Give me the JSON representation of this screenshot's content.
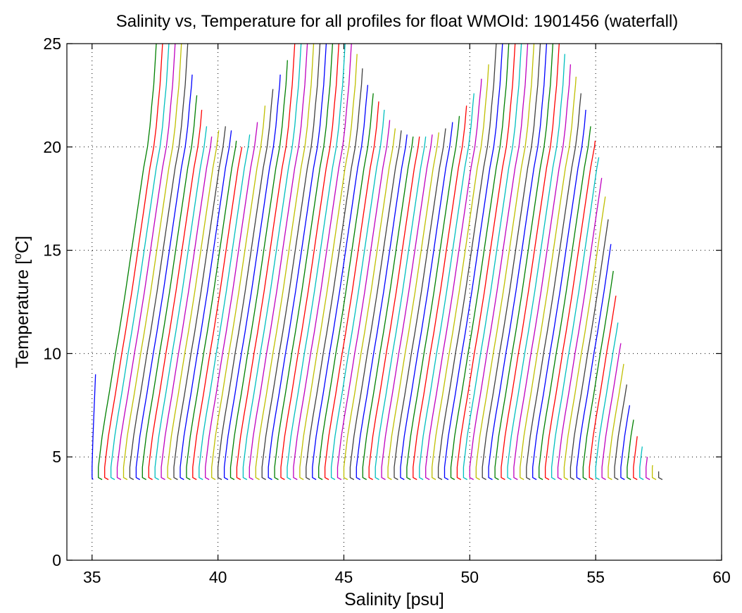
{
  "chart_data": {
    "type": "line",
    "title": "Salinity vs, Temperature for all profiles for float WMOId: 1901456 (waterfall)",
    "xlabel": "Salinity [psu]",
    "ylabel_main": "Temperature [",
    "ylabel_sup": "o",
    "ylabel_end": "C]",
    "xlim": [
      34,
      60
    ],
    "ylim": [
      0,
      25
    ],
    "xticks": [
      35,
      40,
      45,
      50,
      55,
      60
    ],
    "yticks": [
      0,
      5,
      10,
      15,
      20,
      25
    ],
    "xtick_labels": [
      "35",
      "40",
      "45",
      "50",
      "55",
      "60"
    ],
    "ytick_labels": [
      "0",
      "5",
      "10",
      "15",
      "20",
      "25"
    ],
    "grid": true,
    "colors": [
      "#0000ff",
      "#008000",
      "#ff0000",
      "#00bfbf",
      "#bf00bf",
      "#bfbf00",
      "#404040"
    ],
    "waterfall_offset_psu": 0.25,
    "profile_count": 91,
    "base_salinity": 35.0,
    "temperature_levels": [
      3.9,
      4.0,
      4.5,
      5.0,
      6.0,
      7.0,
      8.0,
      9.0,
      10.0,
      11.0,
      12.0,
      13.0,
      14.0,
      15.0,
      16.0,
      17.0,
      18.0,
      19.0,
      20.0,
      21.0,
      22.0,
      23.0,
      24.0,
      25.0
    ],
    "salinity_anomaly_levels": [
      0.15,
      0.0,
      0.0,
      0.05,
      0.15,
      0.28,
      0.42,
      0.55,
      0.68,
      0.82,
      0.95,
      1.08,
      1.2,
      1.32,
      1.44,
      1.56,
      1.68,
      1.8,
      1.95,
      2.05,
      2.12,
      2.2,
      2.25,
      2.3
    ],
    "surface_temperatures": [
      20.0,
      25,
      25,
      25,
      25,
      25,
      25,
      23.5,
      22.5,
      21.8,
      21.0,
      20.5,
      20.8,
      21.0,
      20.8,
      20.3,
      20.0,
      20.6,
      21.2,
      22.0,
      22.8,
      23.5,
      24.2,
      25,
      25,
      25,
      25,
      25,
      25,
      25,
      25,
      25,
      25,
      24.5,
      23.8,
      23.0,
      22.6,
      22.2,
      21.8,
      21.3,
      20.9,
      20.8,
      20.6,
      20.5,
      20.5,
      20.5,
      20.6,
      20.7,
      20.9,
      21.2,
      21.5,
      22.0,
      22.6,
      23.3,
      24.0,
      25,
      25,
      25,
      25,
      25,
      25,
      25,
      25,
      25,
      25,
      25,
      24.5,
      24.0,
      23.4,
      22.6,
      21.8,
      21.0,
      20.3,
      19.5,
      18.5,
      17.6,
      16.5,
      15.3,
      14.0,
      12.8,
      11.5,
      10.5,
      9.5,
      8.5,
      7.5,
      6.8,
      6.0,
      5.5,
      5.0,
      4.6,
      4.3
    ]
  }
}
